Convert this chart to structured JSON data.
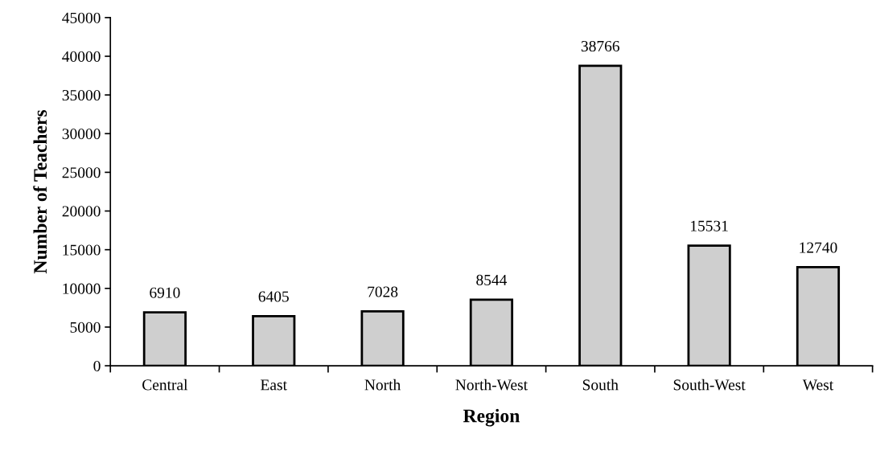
{
  "chart_data": {
    "type": "bar",
    "xlabel": "Region",
    "ylabel": "Number of Teachers",
    "categories": [
      "Central",
      "East",
      "North",
      "North-West",
      "South",
      "South-West",
      "West"
    ],
    "values": [
      6910,
      6405,
      7028,
      8544,
      38766,
      15531,
      12740
    ],
    "color": "#cfcfcf",
    "ylim": [
      0,
      45000
    ],
    "yticks": [
      0,
      5000,
      10000,
      15000,
      20000,
      25000,
      30000,
      35000,
      40000,
      45000
    ],
    "data_labels": true,
    "grid": false,
    "legend": false
  }
}
